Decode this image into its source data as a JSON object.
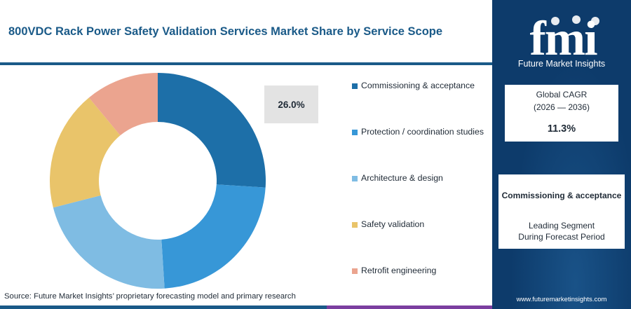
{
  "title": "800VDC Rack Power Safety Validation Services Market Share by Service Scope",
  "callout_value": "26.0%",
  "source": "Source: Future Market Insights’ proprietary forecasting model and primary research",
  "brand": {
    "logo_text": "fmi",
    "tagline": "Future Market Insights",
    "website": "www.futuremarketinsights.com"
  },
  "cagr": {
    "label": "Global CAGR",
    "period": "(2026 — 2036)",
    "value": "11.3%"
  },
  "leading": {
    "name": "Commissioning & acceptance",
    "caption_line1": "Leading Segment",
    "caption_line2": "During Forecast Period"
  },
  "colors": {
    "title": "#1a5a88",
    "panel": "#0d3b6b",
    "bottom_bar": [
      "#1a5a88",
      "#e07a3c",
      "#7b3fa0"
    ]
  },
  "chart_data": {
    "type": "pie",
    "donut": true,
    "start_angle_deg": 0,
    "direction": "clockwise",
    "slices": [
      {
        "label": "Commissioning & acceptance",
        "value": 26.0,
        "color": "#1d6fa8"
      },
      {
        "label": "Protection / coordination studies",
        "value": 23.0,
        "color": "#3797d7"
      },
      {
        "label": "Architecture & design",
        "value": 22.0,
        "color": "#7fbce3"
      },
      {
        "label": "Safety validation",
        "value": 18.0,
        "color": "#e9c46a"
      },
      {
        "label": "Retrofit engineering",
        "value": 11.0,
        "color": "#eba48f"
      }
    ],
    "legend_position": "right"
  }
}
